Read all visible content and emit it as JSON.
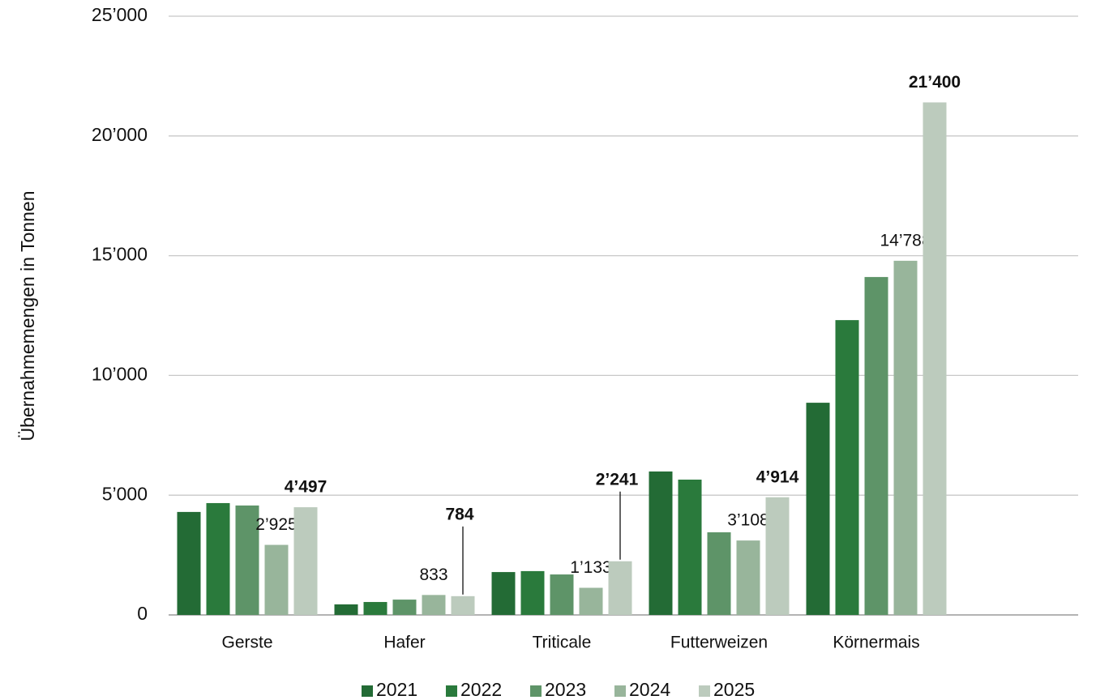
{
  "chart_data": {
    "type": "bar",
    "y_axis_label": "Übernahmemengen in Tonnen",
    "categories": [
      "Gerste",
      "Hafer",
      "Triticale",
      "Futterweizen",
      "Körnermais"
    ],
    "series": [
      {
        "name": "2021",
        "color": "#236b35",
        "values": [
          4300,
          440,
          1790,
          5990,
          8860
        ],
        "value_labels": [
          null,
          null,
          null,
          null,
          null
        ]
      },
      {
        "name": "2022",
        "color": "#2a7a3c",
        "values": [
          4670,
          540,
          1830,
          5650,
          12310
        ],
        "value_labels": [
          null,
          null,
          null,
          null,
          null
        ]
      },
      {
        "name": "2023",
        "color": "#5e9468",
        "values": [
          4570,
          640,
          1690,
          3450,
          14110
        ],
        "value_labels": [
          null,
          null,
          null,
          null,
          null
        ]
      },
      {
        "name": "2024",
        "color": "#98b59b",
        "values": [
          2925,
          833,
          1133,
          3108,
          14788
        ],
        "value_labels": [
          "2’925",
          "833",
          "1’133",
          "3’108",
          "14’788"
        ]
      },
      {
        "name": "2025",
        "color": "#bccbbd",
        "values": [
          4497,
          784,
          2241,
          4914,
          21400
        ],
        "value_labels": [
          "4’497",
          "784",
          "2’241",
          "4’914",
          "21’400"
        ]
      }
    ],
    "ylim": [
      0,
      25000
    ],
    "yticks": [
      0,
      {
        "value": 5000,
        "label": "5’000"
      },
      {
        "value": 10000,
        "label": "10’000"
      },
      {
        "value": 15000,
        "label": "15’000"
      },
      {
        "value": 20000,
        "label": "20’000"
      },
      {
        "value": 25000,
        "label": "25’000"
      }
    ],
    "grid": true,
    "legend": "bottom"
  }
}
